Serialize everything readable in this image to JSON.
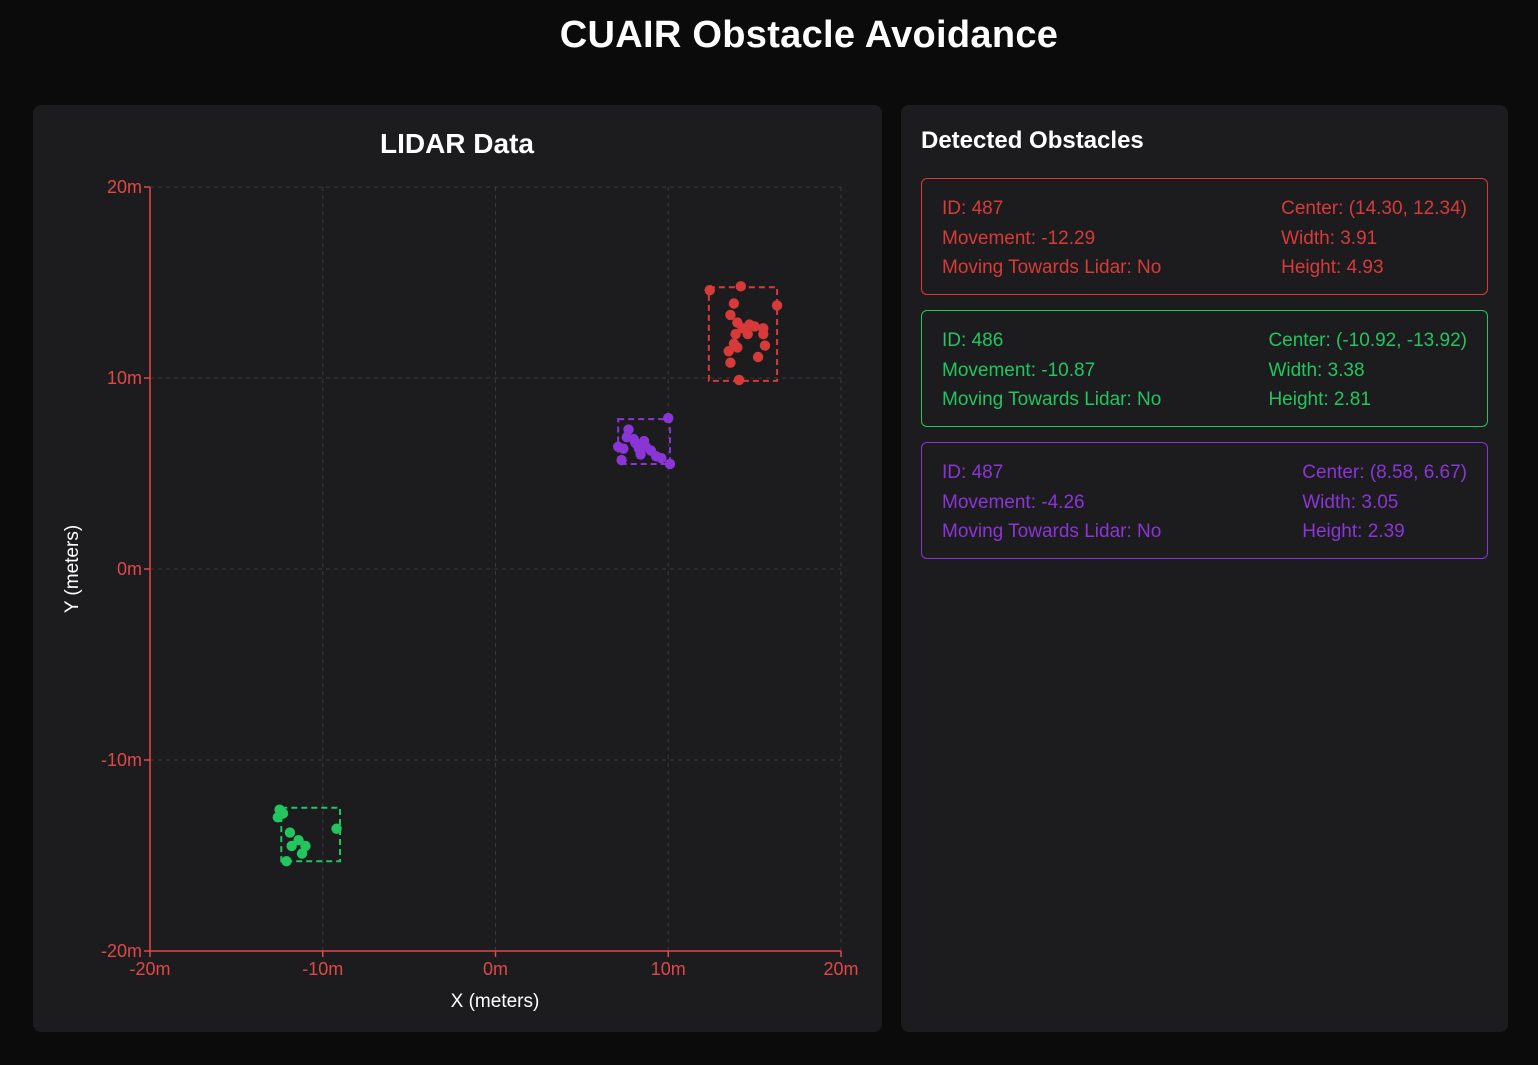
{
  "app": {
    "title": "CUAIR Obstacle Avoidance"
  },
  "obstacles_panel": {
    "title": "Detected Obstacles",
    "labels": {
      "id": "ID:",
      "movement": "Movement:",
      "moving_towards": "Moving Towards Lidar:",
      "center": "Center:",
      "width": "Width:",
      "height": "Height:"
    },
    "obstacles": [
      {
        "color": "#d83a3a",
        "id": "487",
        "movement": "-12.29",
        "moving_towards": "No",
        "center": "(14.30, 12.34)",
        "width": "3.91",
        "height": "4.93"
      },
      {
        "color": "#22c55e",
        "id": "486",
        "movement": "-10.87",
        "moving_towards": "No",
        "center": "(-10.92, -13.92)",
        "width": "3.38",
        "height": "2.81"
      },
      {
        "color": "#8b35d6",
        "id": "487",
        "movement": "-4.26",
        "moving_towards": "No",
        "center": "(8.58, 6.67)",
        "width": "3.05",
        "height": "2.39"
      }
    ]
  },
  "chart_data": {
    "type": "scatter",
    "title": "LIDAR Data",
    "xlabel": "X (meters)",
    "ylabel": "Y (meters)",
    "xlim": [
      -20,
      20
    ],
    "ylim": [
      -20,
      20
    ],
    "xticks": [
      -20,
      -10,
      0,
      10,
      20
    ],
    "yticks": [
      -20,
      -10,
      0,
      10,
      20
    ],
    "tick_suffix": "m",
    "grid": true,
    "axis_color": "#e04848",
    "series": [
      {
        "color": "#d83a3a",
        "bbox": {
          "x": [
            12.35,
            16.3
          ],
          "y": [
            9.85,
            14.75
          ]
        },
        "points": [
          [
            12.4,
            14.6
          ],
          [
            14.2,
            14.8
          ],
          [
            16.3,
            13.8
          ],
          [
            13.8,
            13.9
          ],
          [
            13.6,
            13.3
          ],
          [
            14.0,
            12.9
          ],
          [
            14.3,
            12.6
          ],
          [
            14.7,
            12.8
          ],
          [
            15.0,
            12.7
          ],
          [
            15.5,
            12.6
          ],
          [
            13.9,
            12.3
          ],
          [
            14.6,
            12.3
          ],
          [
            15.5,
            12.3
          ],
          [
            13.8,
            11.8
          ],
          [
            14.0,
            11.6
          ],
          [
            15.6,
            11.7
          ],
          [
            13.5,
            11.4
          ],
          [
            15.2,
            11.1
          ],
          [
            13.6,
            10.8
          ],
          [
            14.1,
            9.9
          ]
        ]
      },
      {
        "color": "#22c55e",
        "bbox": {
          "x": [
            -12.4,
            -9.0
          ],
          "y": [
            -15.3,
            -12.5
          ]
        },
        "points": [
          [
            -12.5,
            -12.6
          ],
          [
            -12.3,
            -12.8
          ],
          [
            -12.6,
            -13.0
          ],
          [
            -11.9,
            -13.8
          ],
          [
            -11.4,
            -14.2
          ],
          [
            -11.0,
            -14.5
          ],
          [
            -11.8,
            -14.5
          ],
          [
            -11.2,
            -14.9
          ],
          [
            -12.1,
            -15.3
          ],
          [
            -9.2,
            -13.6
          ]
        ]
      },
      {
        "color": "#8b35d6",
        "bbox": {
          "x": [
            7.1,
            10.1
          ],
          "y": [
            5.5,
            7.85
          ]
        },
        "points": [
          [
            10.0,
            7.9
          ],
          [
            7.7,
            7.3
          ],
          [
            7.6,
            6.9
          ],
          [
            8.0,
            6.8
          ],
          [
            8.6,
            6.7
          ],
          [
            8.1,
            6.6
          ],
          [
            7.1,
            6.4
          ],
          [
            7.4,
            6.3
          ],
          [
            8.3,
            6.3
          ],
          [
            8.7,
            6.4
          ],
          [
            9.0,
            6.2
          ],
          [
            8.4,
            6.0
          ],
          [
            9.3,
            5.9
          ],
          [
            7.3,
            5.7
          ],
          [
            9.6,
            5.8
          ],
          [
            10.1,
            5.5
          ]
        ]
      }
    ]
  }
}
